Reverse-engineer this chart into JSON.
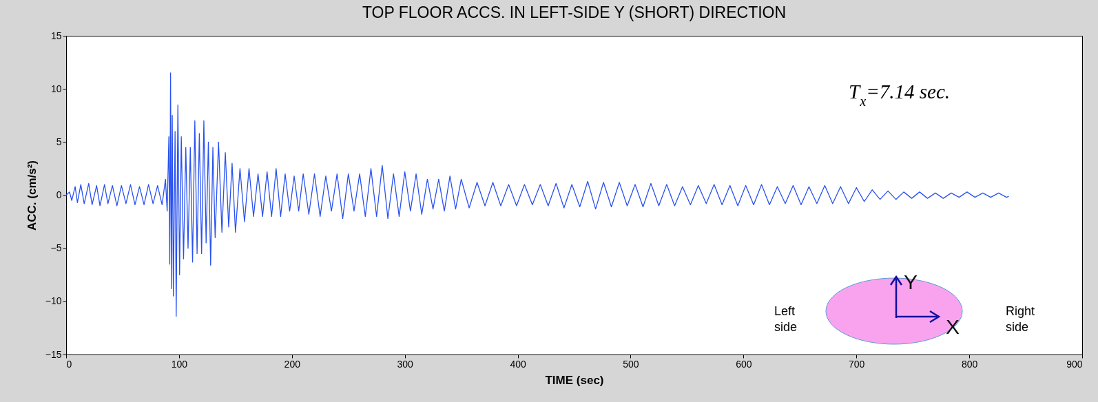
{
  "chart_data": {
    "type": "line",
    "title": "TOP FLOOR ACCS. IN LEFT-SIDE Y (SHORT) DIRECTION",
    "xlabel": "TIME (sec)",
    "ylabel": "ACC. (cm/s²)",
    "annotations": [
      "T$_{x}$=7.14 sec.",
      "Y",
      "X",
      "Left side",
      "Right side"
    ],
    "xlim": [
      0,
      900
    ],
    "xticks": [
      0,
      100,
      200,
      300,
      400,
      500,
      600,
      700,
      800,
      900
    ],
    "ylim": [
      -15,
      15
    ],
    "yticks": [
      -15,
      -10,
      -5,
      0,
      5,
      10,
      15
    ],
    "grid": false,
    "x": [
      0,
      3,
      5,
      8,
      10,
      13,
      16,
      20,
      23,
      27,
      30,
      34,
      37,
      41,
      45,
      49,
      53,
      57,
      61,
      65,
      69,
      73,
      77,
      81,
      85,
      88,
      89.5,
      91,
      91.8,
      92.5,
      93.3,
      94,
      95,
      96.5,
      97.5,
      99,
      100.5,
      102,
      104,
      106,
      108,
      110,
      112,
      114,
      116,
      118,
      120,
      122,
      124,
      126,
      128,
      130,
      132,
      135,
      138,
      141,
      144,
      147,
      150,
      154,
      158,
      162,
      166,
      170,
      174,
      178,
      182,
      186,
      190,
      194,
      198,
      202,
      206,
      210,
      215,
      220,
      225,
      230,
      235,
      240,
      245,
      250,
      255,
      260,
      265,
      270,
      275,
      280,
      285,
      290,
      295,
      300,
      305,
      310,
      315,
      320,
      325,
      330,
      335,
      340,
      345,
      350,
      357,
      364,
      371,
      378,
      385,
      392,
      399,
      406,
      413,
      420,
      427,
      434,
      441,
      448,
      455,
      462,
      469,
      476,
      483,
      490,
      497,
      504,
      511,
      518,
      525,
      532,
      539,
      546,
      553,
      560,
      567,
      574,
      581,
      588,
      595,
      602,
      609,
      616,
      623,
      630,
      637,
      644,
      651,
      658,
      665,
      672,
      679,
      686,
      693,
      700,
      707,
      714,
      721,
      728,
      735,
      742,
      749,
      756,
      763,
      770,
      777,
      784,
      791,
      798,
      805,
      812,
      819,
      826,
      833,
      835
    ],
    "series": [
      {
        "color": "#2a52f0",
        "values": [
          0,
          0.3,
          -0.5,
          0.8,
          -0.7,
          1.0,
          -0.8,
          1.1,
          -0.9,
          0.9,
          -1.0,
          1.0,
          -0.8,
          0.9,
          -1.0,
          0.9,
          -0.8,
          1.0,
          -0.9,
          0.8,
          -0.9,
          1.0,
          -0.8,
          0.9,
          -0.9,
          1.5,
          -1.5,
          5.5,
          -6.5,
          11.5,
          -8.8,
          7.5,
          -9.5,
          6,
          -11.4,
          8.5,
          -7.5,
          5.5,
          -6,
          4.5,
          -5,
          4.5,
          -6.3,
          7,
          -5.5,
          5.8,
          -5.5,
          7,
          -4.5,
          5,
          -6.6,
          4.5,
          -4,
          5,
          -3.5,
          4,
          -3,
          3,
          -3.5,
          2.5,
          -2.5,
          2.5,
          -2,
          2,
          -2,
          2.2,
          -2,
          2.5,
          -2,
          2,
          -1.5,
          1.8,
          -1.5,
          2,
          -1.8,
          2,
          -2,
          1.8,
          -1.5,
          2,
          -2.2,
          2,
          -1.5,
          2,
          -2,
          2.5,
          -2,
          2.8,
          -2.2,
          2,
          -2,
          2.2,
          -1.5,
          2,
          -1.8,
          1.5,
          -1.3,
          1.5,
          -1.5,
          1.8,
          -1.3,
          1.5,
          -1.2,
          1.2,
          -1,
          1.2,
          -1,
          1,
          -1,
          1,
          -0.9,
          1,
          -1,
          1.1,
          -1.2,
          1,
          -1.1,
          1.3,
          -1.3,
          1.2,
          -1.1,
          1.2,
          -1,
          1,
          -1.1,
          1.1,
          -1,
          1,
          -1,
          0.8,
          -0.9,
          0.9,
          -0.8,
          1,
          -0.9,
          0.9,
          -1,
          0.9,
          -0.9,
          1,
          -0.9,
          0.8,
          -0.8,
          0.9,
          -0.9,
          0.8,
          -0.8,
          0.9,
          -0.8,
          0.8,
          -0.8,
          0.7,
          -0.6,
          0.5,
          -0.4,
          0.4,
          -0.4,
          0.3,
          -0.3,
          0.3,
          -0.3,
          0.2,
          -0.3,
          0.2,
          -0.2,
          0.3,
          -0.2,
          0.2,
          -0.2,
          0.2,
          -0.2,
          -0.1
        ]
      }
    ]
  }
}
